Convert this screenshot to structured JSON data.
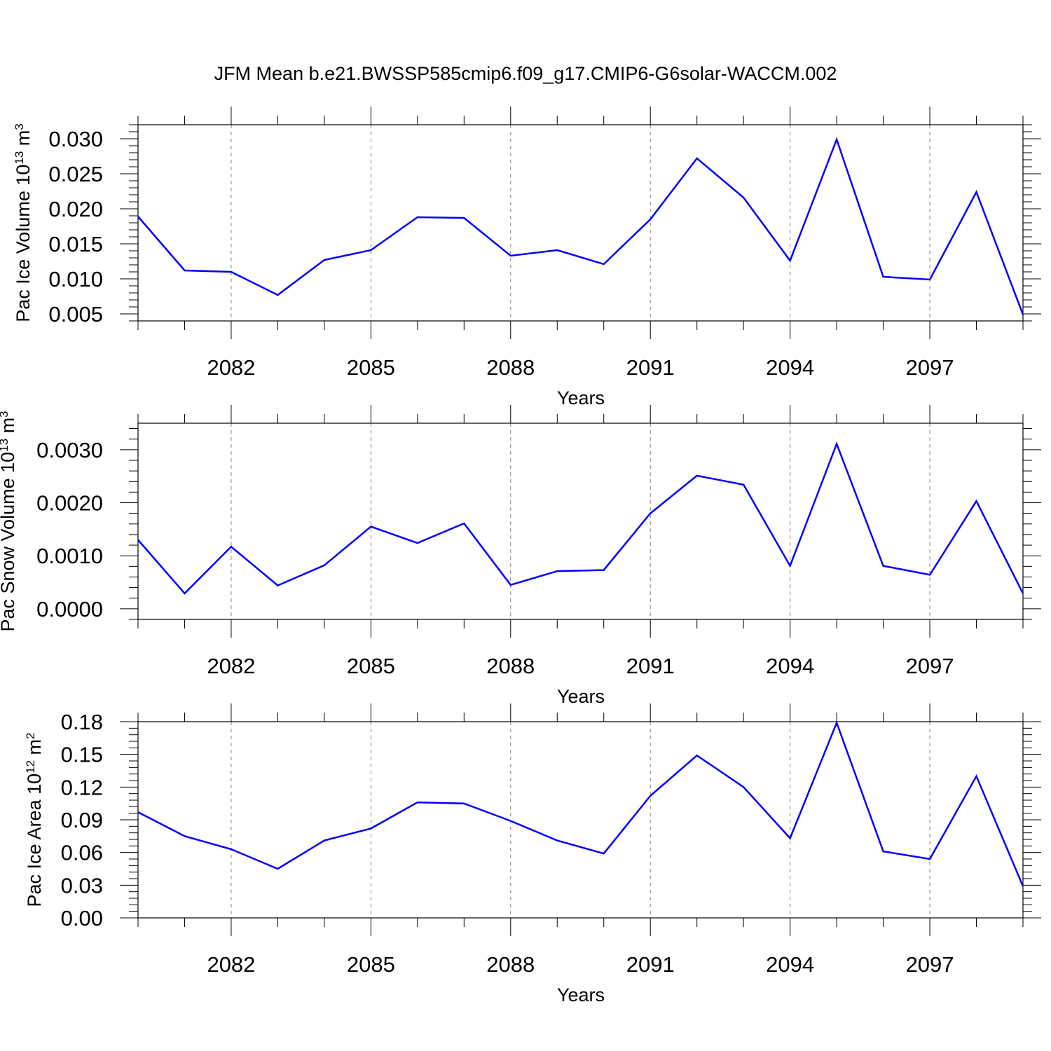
{
  "figure": {
    "title": "JFM Mean b.e21.BWSSP585cmip6.f09_g17.CMIP6-G6solar-WACCM.002",
    "line_color": "#0000ff",
    "axis_color": "#000000",
    "grid_color": "#808080"
  },
  "chart_data": [
    {
      "type": "line",
      "xlabel": "Years",
      "ylabel_main": "Pac Ice Volume 10",
      "ylabel_exp": "13",
      "ylabel_unit": " m",
      "ylabel_unit_exp": "3",
      "x_range": [
        2080,
        2099
      ],
      "y_range": [
        0.004,
        0.032
      ],
      "x_ticks": [
        2082,
        2085,
        2088,
        2091,
        2094,
        2097
      ],
      "x_ticklabels": [
        "2082",
        "2085",
        "2088",
        "2091",
        "2094",
        "2097"
      ],
      "y_ticks": [
        0.005,
        0.01,
        0.015,
        0.02,
        0.025,
        0.03
      ],
      "y_ticklabels": [
        "0.005",
        "0.010",
        "0.015",
        "0.020",
        "0.025",
        "0.030"
      ],
      "grid": "vertical dashed at major x ticks",
      "series": [
        {
          "x": [
            2080,
            2081,
            2082,
            2083,
            2084,
            2085,
            2086,
            2087,
            2088,
            2089,
            2090,
            2091,
            2092,
            2093,
            2094,
            2095,
            2096,
            2097,
            2098,
            2099
          ],
          "values": [
            0.0189,
            0.0112,
            0.011,
            0.0077,
            0.0127,
            0.0141,
            0.0188,
            0.0187,
            0.0133,
            0.0141,
            0.0121,
            0.0185,
            0.0272,
            0.0216,
            0.0126,
            0.0299,
            0.0103,
            0.0099,
            0.0224,
            0.0049
          ]
        }
      ]
    },
    {
      "type": "line",
      "xlabel": "Years",
      "ylabel_main": "Pac Snow Volume 10",
      "ylabel_exp": "13",
      "ylabel_unit": " m",
      "ylabel_unit_exp": "3",
      "x_range": [
        2080,
        2099
      ],
      "y_range": [
        -0.0002,
        0.0035
      ],
      "x_ticks": [
        2082,
        2085,
        2088,
        2091,
        2094,
        2097
      ],
      "x_ticklabels": [
        "2082",
        "2085",
        "2088",
        "2091",
        "2094",
        "2097"
      ],
      "y_ticks": [
        0.0,
        0.001,
        0.002,
        0.003
      ],
      "y_ticklabels": [
        "0.0000",
        "0.0010",
        "0.0020",
        "0.0030"
      ],
      "grid": "vertical dashed at major x ticks",
      "series": [
        {
          "x": [
            2080,
            2081,
            2082,
            2083,
            2084,
            2085,
            2086,
            2087,
            2088,
            2089,
            2090,
            2091,
            2092,
            2093,
            2094,
            2095,
            2096,
            2097,
            2098,
            2099
          ],
          "values": [
            0.0013,
            0.00029,
            0.00117,
            0.00044,
            0.00082,
            0.00155,
            0.00124,
            0.00161,
            0.00045,
            0.00071,
            0.00073,
            0.0018,
            0.00251,
            0.00234,
            0.00081,
            0.00311,
            0.00081,
            0.00064,
            0.00203,
            0.00029
          ]
        }
      ]
    },
    {
      "type": "line",
      "xlabel": "Years",
      "ylabel_main": "Pac Ice Area 10",
      "ylabel_exp": "12",
      "ylabel_unit": " m",
      "ylabel_unit_exp": "2",
      "x_range": [
        2080,
        2099
      ],
      "y_range": [
        0.0,
        0.18
      ],
      "x_ticks": [
        2082,
        2085,
        2088,
        2091,
        2094,
        2097
      ],
      "x_ticklabels": [
        "2082",
        "2085",
        "2088",
        "2091",
        "2094",
        "2097"
      ],
      "y_ticks": [
        0.0,
        0.03,
        0.06,
        0.09,
        0.12,
        0.15,
        0.18
      ],
      "y_ticklabels": [
        "0.00",
        "0.03",
        "0.06",
        "0.09",
        "0.12",
        "0.15",
        "0.18"
      ],
      "grid": "vertical dashed at major x ticks",
      "series": [
        {
          "x": [
            2080,
            2081,
            2082,
            2083,
            2084,
            2085,
            2086,
            2087,
            2088,
            2089,
            2090,
            2091,
            2092,
            2093,
            2094,
            2095,
            2096,
            2097,
            2098,
            2099
          ],
          "values": [
            0.097,
            0.075,
            0.063,
            0.045,
            0.071,
            0.082,
            0.106,
            0.105,
            0.089,
            0.071,
            0.059,
            0.112,
            0.149,
            0.12,
            0.073,
            0.179,
            0.061,
            0.054,
            0.13,
            0.029
          ]
        }
      ]
    }
  ]
}
